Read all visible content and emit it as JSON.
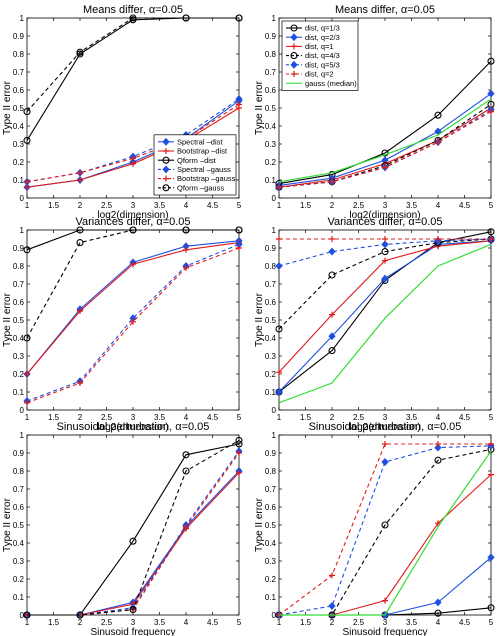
{
  "chart_data": [
    {
      "type": "line",
      "title": "Means differ, α=0.05",
      "xlabel": "log2(dimension)",
      "ylabel": "Type II error",
      "x": [
        1,
        2,
        3,
        4,
        5
      ],
      "xticks": [
        "1",
        "1.5",
        "2",
        "2.5",
        "3",
        "3.5",
        "4",
        "4.5",
        "5"
      ],
      "yticks": [
        "0",
        "0.1",
        "0.2",
        "0.3",
        "0.4",
        "0.5",
        "0.6",
        "0.7",
        "0.8",
        "0.9",
        "1"
      ],
      "xlim": [
        1,
        5
      ],
      "ylim": [
        0,
        1
      ],
      "legend_position": "bottom-right",
      "series": [
        {
          "name": "Spectral –dist",
          "color": "#1f4fe0",
          "dash": "solid",
          "marker": "diamond",
          "values": [
            0.06,
            0.1,
            0.2,
            0.33,
            0.54
          ]
        },
        {
          "name": "Bootstrap –dist",
          "color": "#e01b1b",
          "dash": "solid",
          "marker": "plus",
          "values": [
            0.06,
            0.1,
            0.19,
            0.32,
            0.5
          ]
        },
        {
          "name": "Qform –dist",
          "color": "#000000",
          "dash": "solid",
          "marker": "circle",
          "values": [
            0.32,
            0.8,
            0.99,
            1.0,
            1.0
          ]
        },
        {
          "name": "Spectral –gauss",
          "color": "#1f4fe0",
          "dash": "dashed",
          "marker": "diamond",
          "values": [
            0.09,
            0.14,
            0.23,
            0.35,
            0.55
          ]
        },
        {
          "name": "Bootstrap –gauss",
          "color": "#e01b1b",
          "dash": "dashed",
          "marker": "plus",
          "values": [
            0.09,
            0.14,
            0.22,
            0.33,
            0.52
          ]
        },
        {
          "name": "Qform –gauss",
          "color": "#000000",
          "dash": "dashed",
          "marker": "circle",
          "values": [
            0.48,
            0.81,
            1.0,
            1.0,
            1.0
          ]
        }
      ]
    },
    {
      "type": "line",
      "title": "Means differ, α=0.05",
      "xlabel": "log2(dimension)",
      "ylabel": "Type II error",
      "x": [
        1,
        2,
        3,
        4,
        5
      ],
      "xticks": [
        "1",
        "1.5",
        "2",
        "2.5",
        "3",
        "3.5",
        "4",
        "4.5",
        "5"
      ],
      "yticks": [
        "0",
        "0.1",
        "0.2",
        "0.3",
        "0.4",
        "0.5",
        "0.6",
        "0.7",
        "0.8",
        "0.9",
        "1"
      ],
      "xlim": [
        1,
        5
      ],
      "ylim": [
        0,
        1
      ],
      "legend_position": "top-left",
      "series": [
        {
          "name": "dist, q=1/3",
          "color": "#000000",
          "dash": "solid",
          "marker": "circle",
          "values": [
            0.08,
            0.13,
            0.25,
            0.46,
            0.76
          ]
        },
        {
          "name": "dist, q=2/3",
          "color": "#1f4fe0",
          "dash": "solid",
          "marker": "diamond",
          "values": [
            0.07,
            0.11,
            0.21,
            0.37,
            0.58
          ]
        },
        {
          "name": "dist, q=1",
          "color": "#e01b1b",
          "dash": "solid",
          "marker": "plus",
          "values": [
            0.06,
            0.1,
            0.19,
            0.32,
            0.5
          ]
        },
        {
          "name": "dist, q=4/3",
          "color": "#000000",
          "dash": "dashed",
          "marker": "circle",
          "values": [
            0.06,
            0.09,
            0.18,
            0.32,
            0.52
          ]
        },
        {
          "name": "dist, q=5/3",
          "color": "#1f4fe0",
          "dash": "dashed",
          "marker": "diamond",
          "values": [
            0.06,
            0.09,
            0.17,
            0.31,
            0.49
          ]
        },
        {
          "name": "dist, q=2",
          "color": "#e01b1b",
          "dash": "dashed",
          "marker": "plus",
          "values": [
            0.06,
            0.09,
            0.17,
            0.31,
            0.48
          ]
        },
        {
          "name": "gauss (median)",
          "color": "#33dd33",
          "dash": "solid",
          "marker": "none",
          "values": [
            0.09,
            0.14,
            0.24,
            0.35,
            0.55
          ]
        }
      ]
    },
    {
      "type": "line",
      "title": "Variances differ, α=0.05",
      "xlabel": "log2(dimension)",
      "ylabel": "Type II error",
      "x": [
        1,
        2,
        3,
        4,
        5
      ],
      "xticks": [
        "1",
        "1.5",
        "2",
        "2.5",
        "3",
        "3.5",
        "4",
        "4.5",
        "5"
      ],
      "yticks": [
        "0",
        "0.1",
        "0.2",
        "0.3",
        "0.4",
        "0.5",
        "0.6",
        "0.7",
        "0.8",
        "0.9",
        "1"
      ],
      "xlim": [
        1,
        5
      ],
      "ylim": [
        0,
        1
      ],
      "series": [
        {
          "name": "Spectral –dist",
          "color": "#1f4fe0",
          "dash": "solid",
          "marker": "diamond",
          "values": [
            0.2,
            0.56,
            0.82,
            0.91,
            0.94
          ]
        },
        {
          "name": "Bootstrap –dist",
          "color": "#e01b1b",
          "dash": "solid",
          "marker": "plus",
          "values": [
            0.2,
            0.55,
            0.81,
            0.89,
            0.93
          ]
        },
        {
          "name": "Qform –dist",
          "color": "#000000",
          "dash": "solid",
          "marker": "circle",
          "values": [
            0.89,
            1.0,
            1.0,
            1.0,
            1.0
          ]
        },
        {
          "name": "Spectral –gauss",
          "color": "#1f4fe0",
          "dash": "dashed",
          "marker": "diamond",
          "values": [
            0.05,
            0.16,
            0.51,
            0.8,
            0.92
          ]
        },
        {
          "name": "Bootstrap –gauss",
          "color": "#e01b1b",
          "dash": "dashed",
          "marker": "plus",
          "values": [
            0.04,
            0.15,
            0.49,
            0.79,
            0.9
          ]
        },
        {
          "name": "Qform –gauss",
          "color": "#000000",
          "dash": "dashed",
          "marker": "circle",
          "values": [
            0.4,
            0.93,
            1.0,
            1.0,
            1.0
          ]
        }
      ]
    },
    {
      "type": "line",
      "title": "Variances differ, α=0.05",
      "xlabel": "log2(dimension)",
      "ylabel": "Type II error",
      "x": [
        1,
        2,
        3,
        4,
        5
      ],
      "xticks": [
        "1",
        "1.5",
        "2",
        "2.5",
        "3",
        "3.5",
        "4",
        "4.5",
        "5"
      ],
      "yticks": [
        "0",
        "0.1",
        "0.2",
        "0.3",
        "0.4",
        "0.5",
        "0.6",
        "0.7",
        "0.8",
        "0.9",
        "1"
      ],
      "xlim": [
        1,
        5
      ],
      "ylim": [
        0,
        1
      ],
      "series": [
        {
          "name": "dist, q=1/3",
          "color": "#000000",
          "dash": "solid",
          "marker": "circle",
          "values": [
            0.1,
            0.33,
            0.72,
            0.93,
            0.99
          ]
        },
        {
          "name": "dist, q=2/3",
          "color": "#1f4fe0",
          "dash": "solid",
          "marker": "diamond",
          "values": [
            0.1,
            0.41,
            0.73,
            0.92,
            0.94
          ]
        },
        {
          "name": "dist, q=1",
          "color": "#e01b1b",
          "dash": "solid",
          "marker": "plus",
          "values": [
            0.21,
            0.53,
            0.83,
            0.91,
            0.94
          ]
        },
        {
          "name": "dist, q=4/3",
          "color": "#000000",
          "dash": "dashed",
          "marker": "circle",
          "values": [
            0.45,
            0.75,
            0.88,
            0.93,
            0.95
          ]
        },
        {
          "name": "dist, q=5/3",
          "color": "#1f4fe0",
          "dash": "dashed",
          "marker": "diamond",
          "values": [
            0.8,
            0.88,
            0.92,
            0.94,
            0.95
          ]
        },
        {
          "name": "dist, q=2",
          "color": "#e01b1b",
          "dash": "dashed",
          "marker": "plus",
          "values": [
            0.95,
            0.95,
            0.95,
            0.95,
            0.95
          ]
        },
        {
          "name": "gauss (median)",
          "color": "#33dd33",
          "dash": "solid",
          "marker": "none",
          "values": [
            0.04,
            0.15,
            0.51,
            0.8,
            0.92
          ]
        }
      ]
    },
    {
      "type": "line",
      "title": "Sinusoidal perturbation, α=0.05",
      "xlabel": "Sinusoid frequency",
      "ylabel": "Type II error",
      "x": [
        1,
        2,
        3,
        4,
        5
      ],
      "xticks": [
        "1",
        "1.5",
        "2",
        "2.5",
        "3",
        "3.5",
        "4",
        "4.5",
        "5"
      ],
      "yticks": [
        "0",
        "0.1",
        "0.2",
        "0.3",
        "0.4",
        "0.5",
        "0.6",
        "0.7",
        "0.8",
        "0.9",
        "1"
      ],
      "xlim": [
        1,
        5
      ],
      "ylim": [
        0,
        1
      ],
      "series": [
        {
          "name": "Spectral –dist",
          "color": "#1f4fe0",
          "dash": "solid",
          "marker": "diamond",
          "values": [
            0.0,
            0.0,
            0.07,
            0.49,
            0.8
          ]
        },
        {
          "name": "Bootstrap –dist",
          "color": "#e01b1b",
          "dash": "solid",
          "marker": "plus",
          "values": [
            0.0,
            0.0,
            0.06,
            0.48,
            0.79
          ]
        },
        {
          "name": "Qform –dist",
          "color": "#000000",
          "dash": "solid",
          "marker": "circle",
          "values": [
            0.0,
            0.0,
            0.41,
            0.89,
            0.95
          ]
        },
        {
          "name": "Spectral –gauss",
          "color": "#1f4fe0",
          "dash": "dashed",
          "marker": "diamond",
          "values": [
            0.0,
            0.0,
            0.04,
            0.5,
            0.91
          ]
        },
        {
          "name": "Bootstrap –gauss",
          "color": "#e01b1b",
          "dash": "dashed",
          "marker": "plus",
          "values": [
            0.0,
            0.0,
            0.03,
            0.49,
            0.9
          ]
        },
        {
          "name": "Qform –gauss",
          "color": "#000000",
          "dash": "dashed",
          "marker": "circle",
          "values": [
            0.0,
            0.0,
            0.03,
            0.8,
            0.97
          ]
        }
      ]
    },
    {
      "type": "line",
      "title": "Sinusoidal perturbation, α=0.05",
      "xlabel": "Sinusoid frequency",
      "ylabel": "Type II error",
      "x": [
        1,
        2,
        3,
        4,
        5
      ],
      "xticks": [
        "1",
        "1.5",
        "2",
        "2.5",
        "3",
        "3.5",
        "4",
        "4.5",
        "5"
      ],
      "yticks": [
        "0",
        "0.1",
        "0.2",
        "0.3",
        "0.4",
        "0.5",
        "0.6",
        "0.7",
        "0.8",
        "0.9",
        "1"
      ],
      "xlim": [
        1,
        5
      ],
      "ylim": [
        0,
        1
      ],
      "series": [
        {
          "name": "dist, q=1/3",
          "color": "#000000",
          "dash": "solid",
          "marker": "circle",
          "values": [
            0.0,
            0.0,
            0.0,
            0.01,
            0.04
          ]
        },
        {
          "name": "dist, q=2/3",
          "color": "#1f4fe0",
          "dash": "solid",
          "marker": "diamond",
          "values": [
            0.0,
            0.0,
            0.0,
            0.07,
            0.32
          ]
        },
        {
          "name": "dist, q=1",
          "color": "#e01b1b",
          "dash": "solid",
          "marker": "plus",
          "values": [
            0.0,
            0.0,
            0.08,
            0.51,
            0.78
          ]
        },
        {
          "name": "dist, q=4/3",
          "color": "#000000",
          "dash": "dashed",
          "marker": "circle",
          "values": [
            0.0,
            0.0,
            0.5,
            0.86,
            0.92
          ]
        },
        {
          "name": "dist, q=5/3",
          "color": "#1f4fe0",
          "dash": "dashed",
          "marker": "diamond",
          "values": [
            0.0,
            0.05,
            0.85,
            0.93,
            0.94
          ]
        },
        {
          "name": "dist, q=2",
          "color": "#e01b1b",
          "dash": "dashed",
          "marker": "plus",
          "values": [
            0.0,
            0.22,
            0.95,
            0.95,
            0.95
          ]
        },
        {
          "name": "gauss (median)",
          "color": "#33dd33",
          "dash": "solid",
          "marker": "none",
          "values": [
            0.0,
            0.0,
            0.0,
            0.49,
            0.91
          ]
        }
      ]
    }
  ]
}
